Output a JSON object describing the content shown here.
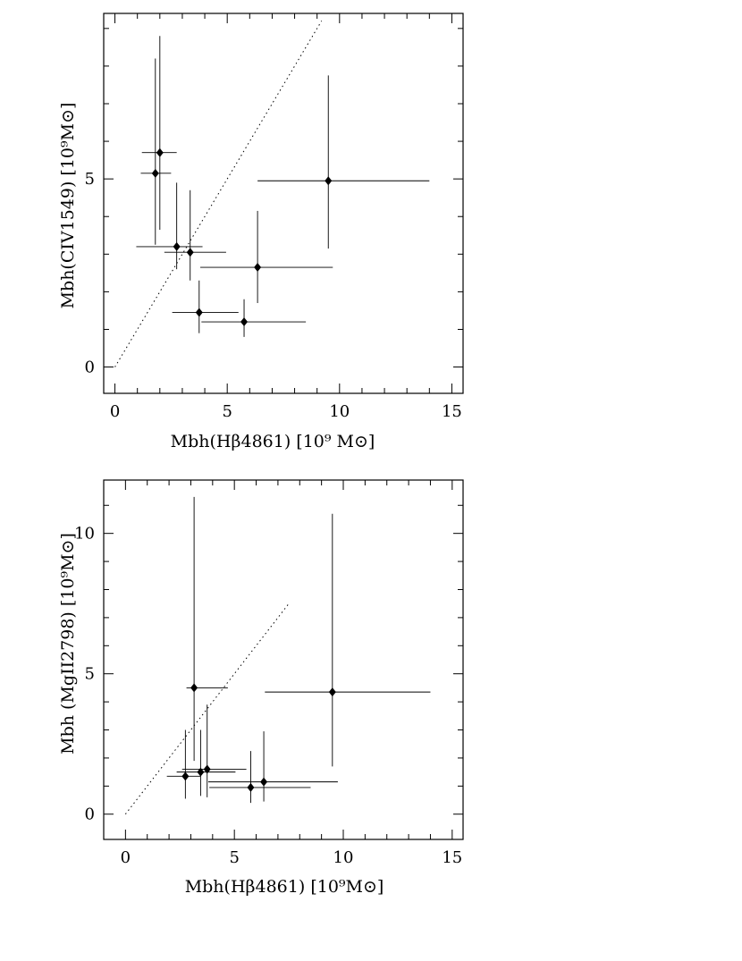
{
  "chart_data": [
    {
      "type": "scatter",
      "title": "",
      "xlabel": "Mbh(Hβ4861)    [10⁹ M⊙]",
      "ylabel": "Mbh(CIV1549)   [10⁹M⊙]",
      "xlim": [
        -0.5,
        15.5
      ],
      "ylim": [
        -0.7,
        9.4
      ],
      "xticks": [
        "0",
        "5",
        "10",
        "15"
      ],
      "yticks": [
        "0",
        "5"
      ],
      "xtick_values": [
        0,
        5,
        10,
        15
      ],
      "ytick_values": [
        0,
        5
      ],
      "reference_line": {
        "style": "dotted",
        "x": [
          0,
          9.2
        ],
        "y": [
          0,
          9.2
        ]
      },
      "marker": "filled-diamond",
      "grid": false,
      "points": [
        {
          "x": 1.8,
          "y": 5.15,
          "xerr": [
            0.65,
            0.7
          ],
          "yerr": [
            1.9,
            3.05
          ]
        },
        {
          "x": 2.0,
          "y": 5.7,
          "xerr": [
            0.8,
            0.75
          ],
          "yerr": [
            2.05,
            3.1
          ]
        },
        {
          "x": 2.75,
          "y": 3.2,
          "xerr": [
            1.8,
            1.15
          ],
          "yerr": [
            0.6,
            1.7
          ]
        },
        {
          "x": 3.35,
          "y": 3.05,
          "xerr": [
            1.15,
            1.6
          ],
          "yerr": [
            0.75,
            1.65
          ]
        },
        {
          "x": 3.75,
          "y": 1.45,
          "xerr": [
            1.2,
            1.75
          ],
          "yerr": [
            0.55,
            0.85
          ]
        },
        {
          "x": 5.75,
          "y": 1.2,
          "xerr": [
            1.9,
            2.75
          ],
          "yerr": [
            0.4,
            0.6
          ]
        },
        {
          "x": 6.35,
          "y": 2.65,
          "xerr": [
            2.55,
            3.35
          ],
          "yerr": [
            0.95,
            1.5
          ]
        },
        {
          "x": 9.5,
          "y": 4.95,
          "xerr": [
            3.15,
            4.5
          ],
          "yerr": [
            1.8,
            2.8
          ]
        }
      ]
    },
    {
      "type": "scatter",
      "title": "",
      "xlabel": "Mbh(Hβ4861)    [10⁹M⊙]",
      "ylabel": "Mbh (MgII2798)     [10⁹M⊙]",
      "xlim": [
        -1.0,
        15.5
      ],
      "ylim": [
        -0.9,
        11.9
      ],
      "xticks": [
        "0",
        "5",
        "10",
        "15"
      ],
      "yticks": [
        "0",
        "5",
        "10"
      ],
      "xtick_values": [
        0,
        5,
        10,
        15
      ],
      "ytick_values": [
        0,
        5,
        10
      ],
      "reference_line": {
        "style": "dotted",
        "x": [
          0,
          7.5
        ],
        "y": [
          0,
          7.5
        ]
      },
      "marker": "filled-diamond",
      "grid": false,
      "points": [
        {
          "x": 2.75,
          "y": 1.35,
          "xerr": [
            0.85,
            0.7
          ],
          "yerr": [
            0.8,
            1.65
          ]
        },
        {
          "x": 3.15,
          "y": 4.5,
          "xerr": [
            0.35,
            1.55
          ],
          "yerr": [
            2.6,
            6.8
          ]
        },
        {
          "x": 3.45,
          "y": 1.5,
          "xerr": [
            1.1,
            1.6
          ],
          "yerr": [
            0.85,
            1.5
          ]
        },
        {
          "x": 3.75,
          "y": 1.6,
          "xerr": [
            1.15,
            1.8
          ],
          "yerr": [
            1.0,
            2.3
          ]
        },
        {
          "x": 5.75,
          "y": 0.95,
          "xerr": [
            1.9,
            2.75
          ],
          "yerr": [
            0.55,
            1.3
          ]
        },
        {
          "x": 6.35,
          "y": 1.15,
          "xerr": [
            2.55,
            3.4
          ],
          "yerr": [
            0.7,
            1.8
          ]
        },
        {
          "x": 9.5,
          "y": 4.35,
          "xerr": [
            3.1,
            4.5
          ],
          "yerr": [
            2.65,
            6.35
          ]
        }
      ]
    }
  ]
}
